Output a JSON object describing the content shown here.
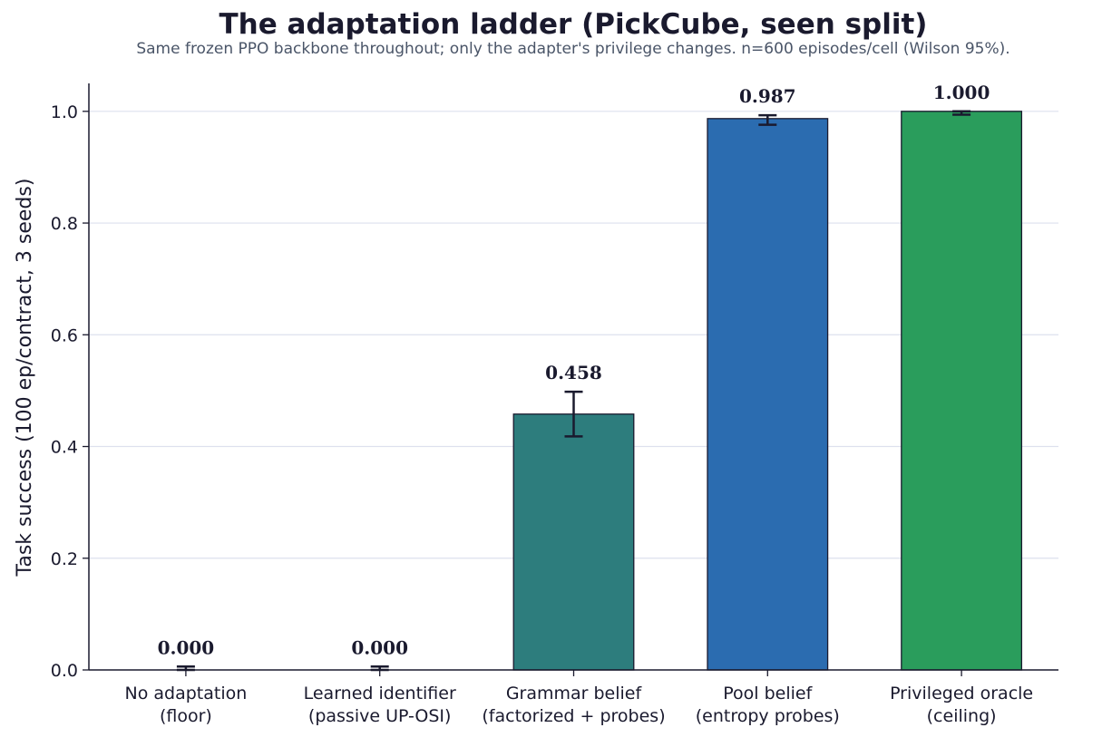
{
  "chart_data": {
    "type": "bar",
    "title": "The adaptation ladder (PickCube, seen split)",
    "subtitle": "Same frozen PPO backbone throughout; only the adapter's privilege changes. n=600 episodes/cell (Wilson 95%).",
    "ylabel": "Task success (100 ep/contract, 3 seeds)",
    "xlabel": "",
    "ylim": [
      0,
      1.05
    ],
    "yticks": [
      0.0,
      0.2,
      0.4,
      0.6,
      0.8,
      1.0
    ],
    "ytick_labels": [
      "0.0",
      "0.2",
      "0.4",
      "0.6",
      "0.8",
      "1.0"
    ],
    "grid": "horizontal",
    "categories": [
      [
        "No adaptation",
        "(floor)"
      ],
      [
        "Learned identifier",
        "(passive UP-OSI)"
      ],
      [
        "Grammar belief",
        "(factorized + probes)"
      ],
      [
        "Pool belief",
        "(entropy probes)"
      ],
      [
        "Privileged oracle",
        "(ceiling)"
      ]
    ],
    "values": [
      0.0,
      0.0,
      0.458,
      0.987,
      1.0
    ],
    "value_labels": [
      "0.000",
      "0.000",
      "0.458",
      "0.987",
      "1.000"
    ],
    "ci_low": [
      0.0,
      0.0,
      0.418,
      0.976,
      0.994
    ],
    "ci_high": [
      0.006,
      0.006,
      0.498,
      0.993,
      1.0
    ],
    "colors": [
      "#2d7d7d",
      "#2d7d7d",
      "#2d7d7d",
      "#2b6cb0",
      "#2a9d5c"
    ],
    "edge_color": "#1a1a2e",
    "grid_color": "#dde1ee"
  }
}
